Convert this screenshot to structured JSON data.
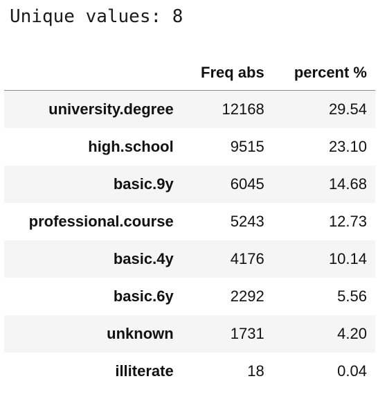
{
  "output": {
    "unique_values_text": "Unique values: 8"
  },
  "table": {
    "columns": {
      "index": "",
      "freq_abs": "Freq abs",
      "percent": "percent %"
    },
    "rows": [
      {
        "label": "university.degree",
        "freq_abs": "12168",
        "percent": "29.54"
      },
      {
        "label": "high.school",
        "freq_abs": "9515",
        "percent": "23.10"
      },
      {
        "label": "basic.9y",
        "freq_abs": "6045",
        "percent": "14.68"
      },
      {
        "label": "professional.course",
        "freq_abs": "5243",
        "percent": "12.73"
      },
      {
        "label": "basic.4y",
        "freq_abs": "4176",
        "percent": "10.14"
      },
      {
        "label": "basic.6y",
        "freq_abs": "2292",
        "percent": "5.56"
      },
      {
        "label": "unknown",
        "freq_abs": "1731",
        "percent": "4.20"
      },
      {
        "label": "illiterate",
        "freq_abs": "18",
        "percent": "0.04"
      }
    ]
  }
}
